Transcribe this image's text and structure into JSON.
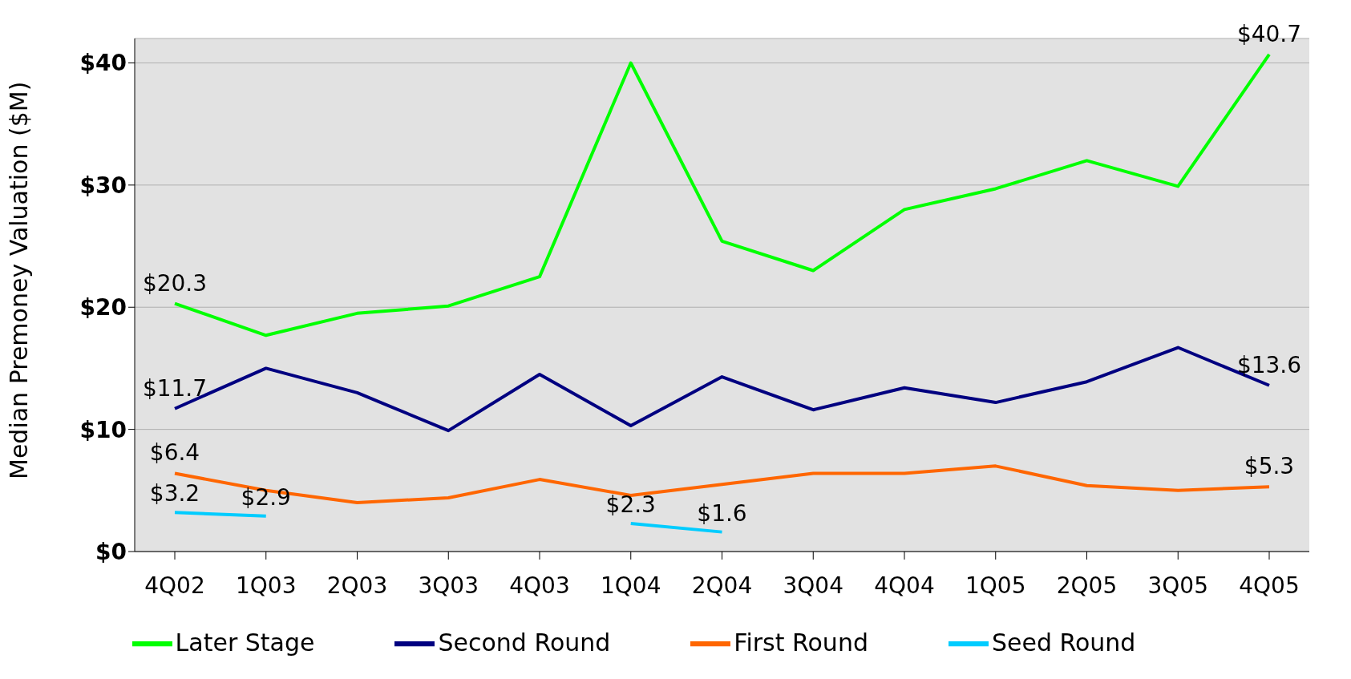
{
  "chart_data": {
    "type": "line",
    "ylabel": "Median Premoney Valuation ($M)",
    "categories": [
      "4Q02",
      "1Q03",
      "2Q03",
      "3Q03",
      "4Q03",
      "1Q04",
      "2Q04",
      "3Q04",
      "4Q04",
      "1Q05",
      "2Q05",
      "3Q05",
      "4Q05"
    ],
    "series": [
      {
        "name": "Later Stage",
        "color": "#00ff00",
        "values": [
          20.3,
          17.7,
          19.5,
          20.1,
          22.5,
          40.0,
          25.4,
          23.0,
          28.0,
          29.7,
          32.0,
          29.9,
          40.7
        ],
        "value_labels": [
          "$20.3",
          null,
          null,
          null,
          null,
          null,
          null,
          null,
          null,
          null,
          null,
          null,
          "$40.7"
        ]
      },
      {
        "name": "Second Round",
        "color": "#000080",
        "values": [
          11.7,
          15.0,
          13.0,
          9.9,
          14.5,
          10.3,
          14.3,
          11.6,
          13.4,
          12.2,
          13.9,
          16.7,
          13.6
        ],
        "value_labels": [
          "$11.7",
          null,
          null,
          null,
          null,
          null,
          null,
          null,
          null,
          null,
          null,
          null,
          "$13.6"
        ]
      },
      {
        "name": "First Round",
        "color": "#ff6600",
        "values": [
          6.4,
          5.0,
          4.0,
          4.4,
          5.9,
          4.6,
          5.5,
          6.4,
          6.4,
          7.0,
          5.4,
          5.0,
          5.3
        ],
        "value_labels": [
          "$6.4",
          null,
          null,
          null,
          null,
          null,
          null,
          null,
          null,
          null,
          null,
          null,
          "$5.3"
        ]
      },
      {
        "name": "Seed Round",
        "color": "#00ccff",
        "values": [
          3.2,
          2.9,
          null,
          null,
          null,
          2.3,
          1.6,
          null,
          null,
          null,
          null,
          null,
          null
        ],
        "value_labels": [
          "$3.2",
          "$2.9",
          null,
          null,
          null,
          "$2.3",
          "$1.6",
          null,
          null,
          null,
          null,
          null,
          null
        ]
      }
    ],
    "ylim": [
      0,
      42
    ],
    "yticks": [
      {
        "value": 0,
        "label": "$0"
      },
      {
        "value": 10,
        "label": "$10"
      },
      {
        "value": 20,
        "label": "$20"
      },
      {
        "value": 30,
        "label": "$30"
      },
      {
        "value": 40,
        "label": "$40"
      }
    ],
    "grid": "y",
    "legend": "bottom",
    "marker": "none",
    "line_style": "solid"
  }
}
